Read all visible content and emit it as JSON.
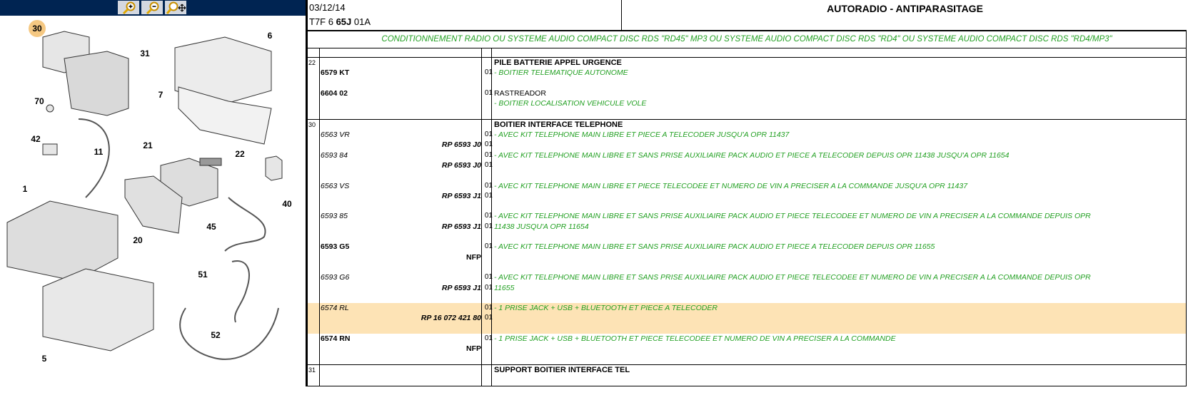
{
  "toolbar": {
    "buttons": [
      {
        "name": "zoom-in-button",
        "icon": "zoom-in-icon"
      },
      {
        "name": "zoom-out-button",
        "icon": "zoom-out-icon"
      },
      {
        "name": "zoom-pan-button",
        "icon": "zoom-pan-icon"
      }
    ],
    "bg": "#002452"
  },
  "diagram": {
    "callouts": [
      {
        "label": "30",
        "highlighted": true
      },
      {
        "label": "6"
      },
      {
        "label": "31"
      },
      {
        "label": "7"
      },
      {
        "label": "70"
      },
      {
        "label": "42"
      },
      {
        "label": "11"
      },
      {
        "label": "21"
      },
      {
        "label": "22"
      },
      {
        "label": "1"
      },
      {
        "label": "40"
      },
      {
        "label": "45"
      },
      {
        "label": "20"
      },
      {
        "label": "51"
      },
      {
        "label": "5"
      },
      {
        "label": "52"
      }
    ],
    "highlight_color": "#f5c882"
  },
  "header": {
    "date": "03/12/14",
    "code_prefix": "T7F 6 ",
    "code_bold": "65J",
    "code_suffix": " 01A",
    "title": "AUTORADIO - ANTIPARASITAGE"
  },
  "subtitle": "CONDITIONNEMENT RADIO OU SYSTEME AUDIO COMPACT DISC RDS \"RD45\" MP3 OU SYSTEME AUDIO COMPACT DISC RDS \"RD4\" OU SYSTEME AUDIO COMPACT DISC RDS \"RD4/MP3\"",
  "colors": {
    "green": "#22a022",
    "highlight": "#fde3b5"
  },
  "groups": [
    {
      "ref": "22",
      "rows": [
        {
          "desc": "PILE BATTERIE APPEL URGENCE",
          "ds": "heading"
        },
        {
          "part": "6579 KT",
          "ps": "bold",
          "qty": "01",
          "desc": "- BOITIER TELEMATIQUE AUTONOME",
          "ds": "green"
        },
        {},
        {
          "part": "6604 02",
          "ps": "bold",
          "qty": "01",
          "desc": "RASTREADOR",
          "ds": "plain"
        },
        {
          "desc": "- BOITIER LOCALISATION VEHICULE VOLE",
          "ds": "green"
        },
        {}
      ]
    },
    {
      "ref": "30",
      "rows": [
        {
          "desc": "BOITIER INTERFACE TELEPHONE",
          "ds": "heading"
        },
        {
          "part": "6563 VR",
          "ps": "ital",
          "qty": "01",
          "desc": "- AVEC KIT TELEPHONE MAIN LIBRE ET PIECE A TELECODER JUSQU'A OPR 11437",
          "ds": "green"
        },
        {
          "part": "RP 6593 J0",
          "ps": "bold ital r",
          "qty": "01"
        },
        {
          "part": "6593 84",
          "ps": "ital",
          "qty": "01",
          "desc": "- AVEC KIT TELEPHONE MAIN LIBRE ET SANS PRISE AUXILIAIRE PACK AUDIO ET PIECE A TELECODER DEPUIS OPR 11438 JUSQU'A OPR 11654",
          "ds": "green"
        },
        {
          "part": "RP 6593 J0",
          "ps": "bold ital r",
          "qty": "01"
        },
        {},
        {
          "part": "6563 VS",
          "ps": "ital",
          "qty": "01",
          "desc": "- AVEC KIT TELEPHONE MAIN LIBRE ET PIECE TELECODEE ET NUMERO DE VIN A PRECISER A LA COMMANDE JUSQU'A OPR 11437",
          "ds": "green"
        },
        {
          "part": "RP 6593 J1",
          "ps": "bold ital r",
          "qty": "01"
        },
        {},
        {
          "part": "6593 85",
          "ps": "ital",
          "qty": "01",
          "desc": "- AVEC KIT TELEPHONE MAIN LIBRE ET SANS PRISE AUXILIAIRE PACK AUDIO ET PIECE TELECODEE ET NUMERO DE VIN A PRECISER A LA COMMANDE DEPUIS OPR",
          "ds": "green"
        },
        {
          "part": "RP 6593 J1",
          "ps": "bold ital r",
          "qty": "01",
          "desc": "11438 JUSQU'A OPR 11654",
          "ds": "green"
        },
        {},
        {
          "part": "6593 G5",
          "ps": "bold",
          "qty": "01",
          "desc": "- AVEC KIT TELEPHONE MAIN LIBRE ET SANS PRISE AUXILIAIRE PACK AUDIO ET PIECE A TELECODER DEPUIS OPR 11655",
          "ds": "green"
        },
        {
          "part": "NFP",
          "ps": "bold r"
        },
        {},
        {
          "part": "6593 G6",
          "ps": "ital",
          "qty": "01",
          "desc": "- AVEC KIT TELEPHONE MAIN LIBRE ET SANS PRISE AUXILIAIRE PACK AUDIO ET PIECE TELECODEE ET NUMERO DE VIN A PRECISER A LA COMMANDE DEPUIS OPR",
          "ds": "green"
        },
        {
          "part": "RP 6593 J1",
          "ps": "bold ital r",
          "qty": "01",
          "desc": "11655",
          "ds": "green"
        },
        {},
        {
          "part": "6574 RL",
          "ps": "ital",
          "qty": "01",
          "desc": "- 1 PRISE JACK + USB + BLUETOOTH ET PIECE A TELECODER",
          "ds": "green",
          "hl": true
        },
        {
          "part": "RP 16 072 421 80",
          "ps": "bold ital r",
          "qty": "01",
          "hl": true
        },
        {
          "hl": true
        },
        {
          "part": "6574 RN",
          "ps": "bold",
          "qty": "01",
          "desc": "- 1 PRISE JACK + USB + BLUETOOTH ET PIECE TELECODEE ET NUMERO DE VIN A PRECISER A LA COMMANDE",
          "ds": "green"
        },
        {
          "part": "NFP",
          "ps": "bold r"
        },
        {}
      ]
    },
    {
      "ref": "31",
      "rows": [
        {
          "desc": "SUPPORT BOITIER INTERFACE TEL",
          "ds": "heading"
        },
        {}
      ]
    }
  ]
}
